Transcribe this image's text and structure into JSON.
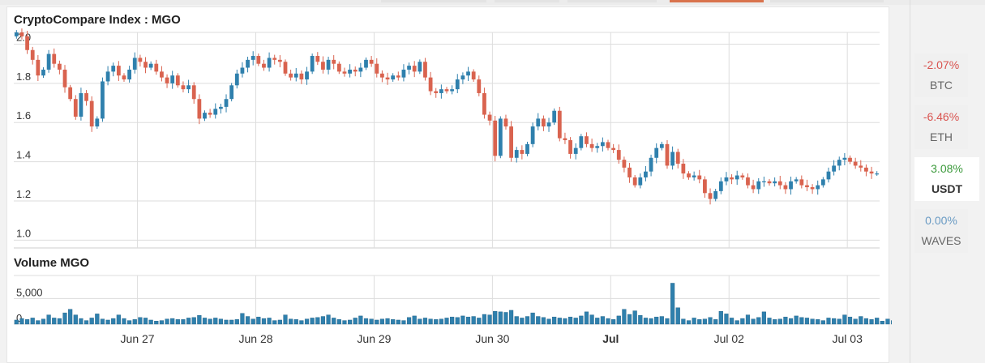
{
  "sidebar": {
    "items": [
      {
        "change": "-2.07%",
        "symbol": "BTC",
        "color": "#d9534f",
        "selected": false
      },
      {
        "change": "-6.46%",
        "symbol": "ETH",
        "color": "#d9534f",
        "selected": false
      },
      {
        "change": "3.08%",
        "symbol": "USDT",
        "color": "#3c9a3c",
        "selected": true
      },
      {
        "change": "0.00%",
        "symbol": "WAVES",
        "color": "#6a9bc4",
        "selected": false
      }
    ]
  },
  "chart_data": {
    "type": "candlestick",
    "title": "CryptoCompare Index : MGO",
    "volume_title": "Volume MGO",
    "colors": {
      "up": "#2f80ad",
      "down": "#d9634f",
      "volume": "#2f80ad",
      "grid": "#dddddd",
      "axis": "#cccccc"
    },
    "price_axis": {
      "ticks": [
        "1.0",
        "1.2",
        "1.4",
        "1.6",
        "1.8",
        "2.0"
      ],
      "tick_values": [
        1.0,
        1.2,
        1.4,
        1.6,
        1.8,
        2.0
      ],
      "ylim": [
        0.96,
        2.06
      ]
    },
    "volume_axis": {
      "ticks": [
        "0",
        "5,000"
      ],
      "tick_values": [
        0,
        5000
      ],
      "ylim": [
        0,
        9500
      ]
    },
    "x_ticks": [
      {
        "label": "Jun 27",
        "slot": 23,
        "bold": false
      },
      {
        "label": "Jun 28",
        "slot": 45,
        "bold": false
      },
      {
        "label": "Jun 29",
        "slot": 67,
        "bold": false
      },
      {
        "label": "Jun 30",
        "slot": 89,
        "bold": false
      },
      {
        "label": "Jul",
        "slot": 111,
        "bold": true
      },
      {
        "label": "Jul 02",
        "slot": 133,
        "bold": false
      },
      {
        "label": "Jul 03",
        "slot": 155,
        "bold": false
      }
    ],
    "series_close": [
      2.06,
      2.04,
      1.97,
      1.92,
      1.84,
      1.87,
      1.95,
      1.9,
      1.87,
      1.78,
      1.72,
      1.63,
      1.75,
      1.71,
      1.58,
      1.62,
      1.81,
      1.86,
      1.89,
      1.84,
      1.82,
      1.87,
      1.93,
      1.91,
      1.88,
      1.9,
      1.86,
      1.83,
      1.8,
      1.84,
      1.79,
      1.77,
      1.79,
      1.72,
      1.62,
      1.65,
      1.64,
      1.67,
      1.68,
      1.72,
      1.79,
      1.85,
      1.88,
      1.92,
      1.94,
      1.9,
      1.88,
      1.93,
      1.92,
      1.91,
      1.85,
      1.83,
      1.85,
      1.82,
      1.86,
      1.94,
      1.91,
      1.87,
      1.92,
      1.9,
      1.86,
      1.85,
      1.87,
      1.86,
      1.88,
      1.92,
      1.9,
      1.85,
      1.83,
      1.82,
      1.84,
      1.83,
      1.87,
      1.89,
      1.86,
      1.91,
      1.83,
      1.76,
      1.75,
      1.77,
      1.76,
      1.77,
      1.82,
      1.84,
      1.86,
      1.82,
      1.75,
      1.64,
      1.61,
      1.43,
      1.62,
      1.58,
      1.42,
      1.46,
      1.44,
      1.49,
      1.58,
      1.62,
      1.58,
      1.6,
      1.66,
      1.52,
      1.51,
      1.44,
      1.47,
      1.53,
      1.49,
      1.47,
      1.48,
      1.5,
      1.47,
      1.46,
      1.41,
      1.37,
      1.32,
      1.28,
      1.32,
      1.35,
      1.42,
      1.47,
      1.49,
      1.38,
      1.45,
      1.39,
      1.34,
      1.32,
      1.33,
      1.31,
      1.24,
      1.21,
      1.25,
      1.3,
      1.32,
      1.31,
      1.33,
      1.32,
      1.28,
      1.26,
      1.3,
      1.3,
      1.29,
      1.3,
      1.28,
      1.26,
      1.3,
      1.31,
      1.28,
      1.27,
      1.26,
      1.28,
      1.31,
      1.35,
      1.38,
      1.41,
      1.42,
      1.4,
      1.38,
      1.37,
      1.35,
      1.34,
      1.34
    ],
    "volume": [
      800,
      1100,
      900,
      1200,
      700,
      1000,
      1800,
      1200,
      1100,
      2200,
      2900,
      1800,
      1100,
      700,
      1200,
      2000,
      1000,
      800,
      1100,
      1800,
      1100,
      700,
      900,
      1300,
      1200,
      800,
      600,
      700,
      1000,
      1100,
      900,
      900,
      1200,
      1300,
      1700,
      1200,
      1000,
      1200,
      1000,
      800,
      800,
      900,
      2100,
      1500,
      1000,
      1400,
      1100,
      1200,
      700,
      800,
      1800,
      1000,
      900,
      700,
      1000,
      1200,
      1300,
      1500,
      1800,
      1200,
      900,
      700,
      800,
      1200,
      1600,
      1100,
      1000,
      800,
      1000,
      1100,
      900,
      800,
      700,
      1300,
      1600,
      1000,
      1200,
      1000,
      900,
      1000,
      1200,
      1400,
      1300,
      1600,
      1400,
      1500,
      1200,
      1900,
      1800,
      2500,
      2400,
      2300,
      2700,
      1500,
      1200,
      1500,
      2200,
      1500,
      1300,
      1000,
      1400,
      1200,
      1100,
      1400,
      1200,
      1600,
      2400,
      1800,
      1200,
      1500,
      1100,
      900,
      1600,
      2900,
      1900,
      2600,
      1700,
      1200,
      1100,
      1400,
      1500,
      1100,
      8000,
      3200,
      1000,
      700,
      1200,
      900,
      1000,
      1300,
      900,
      2500,
      2000,
      1200,
      700,
      1100,
      1800,
      1000,
      1300,
      2400,
      1200,
      900,
      1000,
      1400,
      1100,
      1600,
      1300,
      1200,
      1000,
      900,
      700,
      1200,
      1100,
      1000,
      1800,
      1400,
      1000,
      1500,
      1100,
      900,
      1200,
      600,
      1000,
      700,
      400
    ]
  }
}
